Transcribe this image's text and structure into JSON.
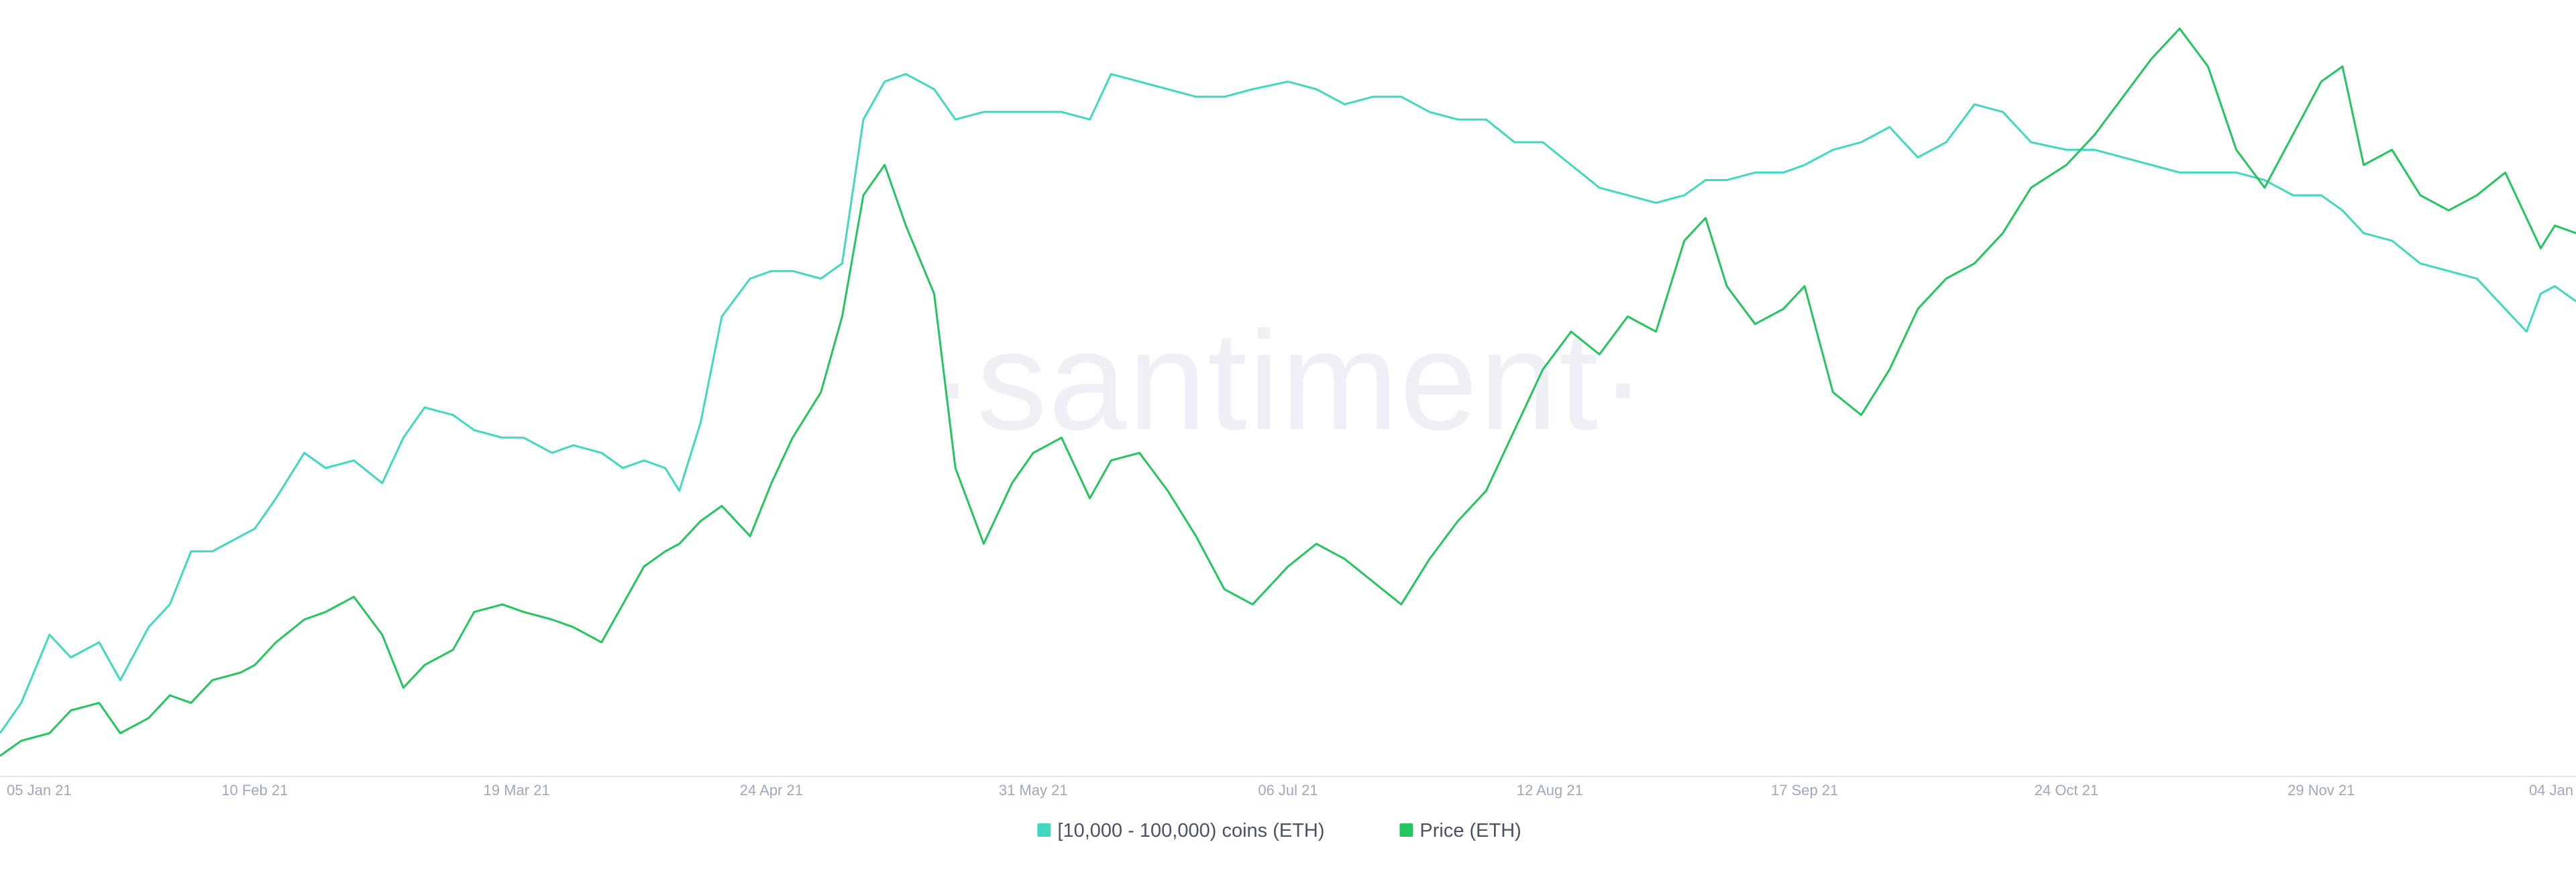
{
  "watermark": "·santiment·",
  "colors": {
    "background": "#ffffff",
    "axis": "#e3e7ef",
    "tick_text": "#9fa7bf"
  },
  "chart_data": {
    "type": "line",
    "title": "",
    "xlabel": "",
    "ylabel": "",
    "x_start": "2021-01-05",
    "x_end": "2022-01-04",
    "x_ticks": [
      {
        "label": "05 Jan 21",
        "date": "2021-01-05"
      },
      {
        "label": "10 Feb 21",
        "date": "2021-02-10"
      },
      {
        "label": "19 Mar 21",
        "date": "2021-03-19"
      },
      {
        "label": "24 Apr 21",
        "date": "2021-04-24"
      },
      {
        "label": "31 May 21",
        "date": "2021-05-31"
      },
      {
        "label": "06 Jul 21",
        "date": "2021-07-06"
      },
      {
        "label": "12 Aug 21",
        "date": "2021-08-12"
      },
      {
        "label": "17 Sep 21",
        "date": "2021-09-17"
      },
      {
        "label": "24 Oct 21",
        "date": "2021-10-24"
      },
      {
        "label": "29 Nov 21",
        "date": "2021-11-29"
      },
      {
        "label": "04 Jan",
        "date": "2022-01-04"
      }
    ],
    "grid": false,
    "legend_position": "bottom-center",
    "series": [
      {
        "name": "[10,000 - 100,000) coins (ETH)",
        "color": "#3fd9c0",
        "y_axis": "hidden",
        "ylim": [
          0,
          100
        ],
        "points": [
          [
            "2021-01-05",
            5
          ],
          [
            "2021-01-08",
            9
          ],
          [
            "2021-01-12",
            18
          ],
          [
            "2021-01-15",
            15
          ],
          [
            "2021-01-19",
            17
          ],
          [
            "2021-01-22",
            12
          ],
          [
            "2021-01-26",
            19
          ],
          [
            "2021-01-29",
            22
          ],
          [
            "2021-02-01",
            29
          ],
          [
            "2021-02-04",
            29
          ],
          [
            "2021-02-08",
            31
          ],
          [
            "2021-02-10",
            32
          ],
          [
            "2021-02-13",
            36
          ],
          [
            "2021-02-17",
            42
          ],
          [
            "2021-02-20",
            40
          ],
          [
            "2021-02-24",
            41
          ],
          [
            "2021-02-28",
            38
          ],
          [
            "2021-03-03",
            44
          ],
          [
            "2021-03-06",
            48
          ],
          [
            "2021-03-10",
            47
          ],
          [
            "2021-03-13",
            45
          ],
          [
            "2021-03-17",
            44
          ],
          [
            "2021-03-20",
            44
          ],
          [
            "2021-03-24",
            42
          ],
          [
            "2021-03-27",
            43
          ],
          [
            "2021-03-31",
            42
          ],
          [
            "2021-04-03",
            40
          ],
          [
            "2021-04-06",
            41
          ],
          [
            "2021-04-09",
            40
          ],
          [
            "2021-04-11",
            37
          ],
          [
            "2021-04-14",
            46
          ],
          [
            "2021-04-17",
            60
          ],
          [
            "2021-04-21",
            65
          ],
          [
            "2021-04-24",
            66
          ],
          [
            "2021-04-27",
            66
          ],
          [
            "2021-05-01",
            65
          ],
          [
            "2021-05-04",
            67
          ],
          [
            "2021-05-07",
            86
          ],
          [
            "2021-05-10",
            91
          ],
          [
            "2021-05-13",
            92
          ],
          [
            "2021-05-17",
            90
          ],
          [
            "2021-05-20",
            86
          ],
          [
            "2021-05-24",
            87
          ],
          [
            "2021-05-28",
            87
          ],
          [
            "2021-05-31",
            87
          ],
          [
            "2021-06-04",
            87
          ],
          [
            "2021-06-08",
            86
          ],
          [
            "2021-06-11",
            92
          ],
          [
            "2021-06-15",
            91
          ],
          [
            "2021-06-19",
            90
          ],
          [
            "2021-06-23",
            89
          ],
          [
            "2021-06-27",
            89
          ],
          [
            "2021-07-01",
            90
          ],
          [
            "2021-07-06",
            91
          ],
          [
            "2021-07-10",
            90
          ],
          [
            "2021-07-14",
            88
          ],
          [
            "2021-07-18",
            89
          ],
          [
            "2021-07-22",
            89
          ],
          [
            "2021-07-26",
            87
          ],
          [
            "2021-07-30",
            86
          ],
          [
            "2021-08-03",
            86
          ],
          [
            "2021-08-07",
            83
          ],
          [
            "2021-08-11",
            83
          ],
          [
            "2021-08-15",
            80
          ],
          [
            "2021-08-19",
            77
          ],
          [
            "2021-08-23",
            76
          ],
          [
            "2021-08-27",
            75
          ],
          [
            "2021-08-31",
            76
          ],
          [
            "2021-09-03",
            78
          ],
          [
            "2021-09-06",
            78
          ],
          [
            "2021-09-10",
            79
          ],
          [
            "2021-09-14",
            79
          ],
          [
            "2021-09-17",
            80
          ],
          [
            "2021-09-21",
            82
          ],
          [
            "2021-09-25",
            83
          ],
          [
            "2021-09-29",
            85
          ],
          [
            "2021-10-03",
            81
          ],
          [
            "2021-10-07",
            83
          ],
          [
            "2021-10-11",
            88
          ],
          [
            "2021-10-15",
            87
          ],
          [
            "2021-10-19",
            83
          ],
          [
            "2021-10-24",
            82
          ],
          [
            "2021-10-28",
            82
          ],
          [
            "2021-11-01",
            81
          ],
          [
            "2021-11-05",
            80
          ],
          [
            "2021-11-09",
            79
          ],
          [
            "2021-11-13",
            79
          ],
          [
            "2021-11-17",
            79
          ],
          [
            "2021-11-21",
            78
          ],
          [
            "2021-11-25",
            76
          ],
          [
            "2021-11-29",
            76
          ],
          [
            "2021-12-02",
            74
          ],
          [
            "2021-12-05",
            71
          ],
          [
            "2021-12-09",
            70
          ],
          [
            "2021-12-13",
            67
          ],
          [
            "2021-12-17",
            66
          ],
          [
            "2021-12-21",
            65
          ],
          [
            "2021-12-25",
            61
          ],
          [
            "2021-12-28",
            58
          ],
          [
            "2021-12-30",
            63
          ],
          [
            "2022-01-01",
            64
          ],
          [
            "2022-01-04",
            62
          ]
        ]
      },
      {
        "name": "Price (ETH)",
        "color": "#22c55e",
        "y_axis": "hidden",
        "ylim": [
          0,
          100
        ],
        "points": [
          [
            "2021-01-05",
            2
          ],
          [
            "2021-01-08",
            4
          ],
          [
            "2021-01-12",
            5
          ],
          [
            "2021-01-15",
            8
          ],
          [
            "2021-01-19",
            9
          ],
          [
            "2021-01-22",
            5
          ],
          [
            "2021-01-26",
            7
          ],
          [
            "2021-01-29",
            10
          ],
          [
            "2021-02-01",
            9
          ],
          [
            "2021-02-04",
            12
          ],
          [
            "2021-02-08",
            13
          ],
          [
            "2021-02-10",
            14
          ],
          [
            "2021-02-13",
            17
          ],
          [
            "2021-02-17",
            20
          ],
          [
            "2021-02-20",
            21
          ],
          [
            "2021-02-24",
            23
          ],
          [
            "2021-02-28",
            18
          ],
          [
            "2021-03-03",
            11
          ],
          [
            "2021-03-06",
            14
          ],
          [
            "2021-03-10",
            16
          ],
          [
            "2021-03-13",
            21
          ],
          [
            "2021-03-17",
            22
          ],
          [
            "2021-03-20",
            21
          ],
          [
            "2021-03-24",
            20
          ],
          [
            "2021-03-27",
            19
          ],
          [
            "2021-03-31",
            17
          ],
          [
            "2021-04-03",
            22
          ],
          [
            "2021-04-06",
            27
          ],
          [
            "2021-04-09",
            29
          ],
          [
            "2021-04-11",
            30
          ],
          [
            "2021-04-14",
            33
          ],
          [
            "2021-04-17",
            35
          ],
          [
            "2021-04-21",
            31
          ],
          [
            "2021-04-24",
            38
          ],
          [
            "2021-04-27",
            44
          ],
          [
            "2021-05-01",
            50
          ],
          [
            "2021-05-04",
            60
          ],
          [
            "2021-05-07",
            76
          ],
          [
            "2021-05-10",
            80
          ],
          [
            "2021-05-13",
            72
          ],
          [
            "2021-05-17",
            63
          ],
          [
            "2021-05-20",
            40
          ],
          [
            "2021-05-24",
            30
          ],
          [
            "2021-05-28",
            38
          ],
          [
            "2021-05-31",
            42
          ],
          [
            "2021-06-04",
            44
          ],
          [
            "2021-06-08",
            36
          ],
          [
            "2021-06-11",
            41
          ],
          [
            "2021-06-15",
            42
          ],
          [
            "2021-06-19",
            37
          ],
          [
            "2021-06-23",
            31
          ],
          [
            "2021-06-27",
            24
          ],
          [
            "2021-07-01",
            22
          ],
          [
            "2021-07-06",
            27
          ],
          [
            "2021-07-10",
            30
          ],
          [
            "2021-07-14",
            28
          ],
          [
            "2021-07-18",
            25
          ],
          [
            "2021-07-22",
            22
          ],
          [
            "2021-07-26",
            28
          ],
          [
            "2021-07-30",
            33
          ],
          [
            "2021-08-03",
            37
          ],
          [
            "2021-08-07",
            45
          ],
          [
            "2021-08-11",
            53
          ],
          [
            "2021-08-15",
            58
          ],
          [
            "2021-08-19",
            55
          ],
          [
            "2021-08-23",
            60
          ],
          [
            "2021-08-27",
            58
          ],
          [
            "2021-08-31",
            70
          ],
          [
            "2021-09-03",
            73
          ],
          [
            "2021-09-06",
            64
          ],
          [
            "2021-09-10",
            59
          ],
          [
            "2021-09-14",
            61
          ],
          [
            "2021-09-17",
            64
          ],
          [
            "2021-09-21",
            50
          ],
          [
            "2021-09-25",
            47
          ],
          [
            "2021-09-29",
            53
          ],
          [
            "2021-10-03",
            61
          ],
          [
            "2021-10-07",
            65
          ],
          [
            "2021-10-11",
            67
          ],
          [
            "2021-10-15",
            71
          ],
          [
            "2021-10-19",
            77
          ],
          [
            "2021-10-24",
            80
          ],
          [
            "2021-10-28",
            84
          ],
          [
            "2021-11-01",
            89
          ],
          [
            "2021-11-05",
            94
          ],
          [
            "2021-11-09",
            98
          ],
          [
            "2021-11-13",
            93
          ],
          [
            "2021-11-17",
            82
          ],
          [
            "2021-11-21",
            77
          ],
          [
            "2021-11-25",
            84
          ],
          [
            "2021-11-29",
            91
          ],
          [
            "2021-12-02",
            93
          ],
          [
            "2021-12-05",
            80
          ],
          [
            "2021-12-09",
            82
          ],
          [
            "2021-12-13",
            76
          ],
          [
            "2021-12-17",
            74
          ],
          [
            "2021-12-21",
            76
          ],
          [
            "2021-12-25",
            79
          ],
          [
            "2021-12-28",
            73
          ],
          [
            "2021-12-30",
            69
          ],
          [
            "2022-01-01",
            72
          ],
          [
            "2022-01-04",
            71
          ]
        ]
      }
    ]
  }
}
